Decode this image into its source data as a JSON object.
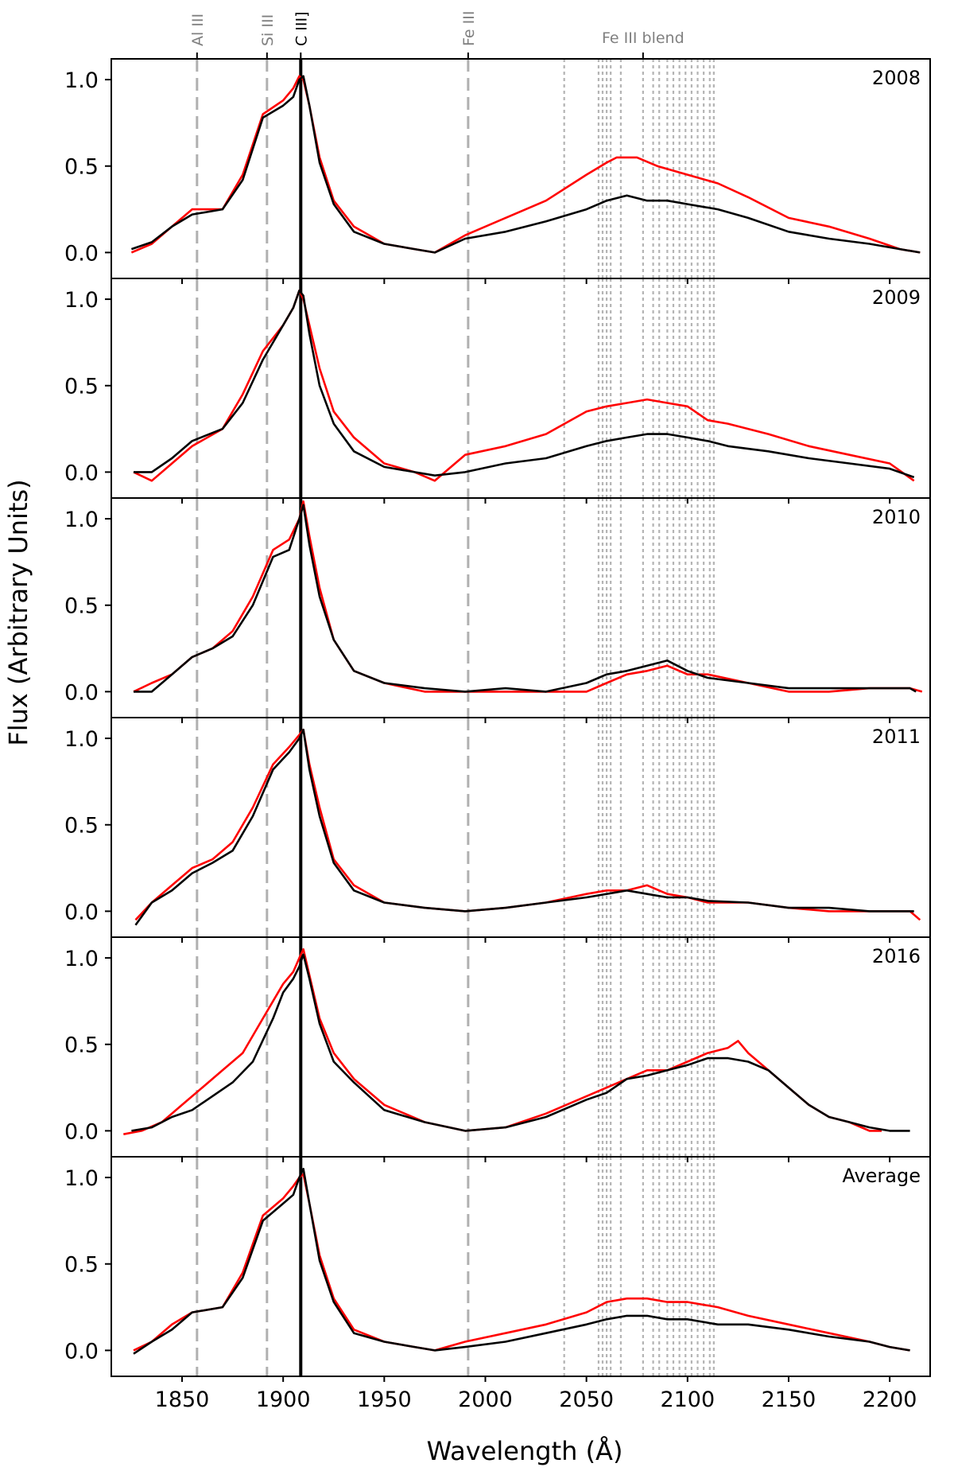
{
  "chart_data": {
    "type": "line",
    "xlabel": "Wavelength (Å)",
    "ylabel": "Flux (Arbitrary Units)",
    "xlim": [
      1815,
      2220
    ],
    "ylim": [
      -0.15,
      1.12
    ],
    "x_ticks": [
      1850,
      1900,
      1950,
      2000,
      2050,
      2100,
      2150,
      2200
    ],
    "y_ticks": [
      0.0,
      0.5,
      1.0
    ],
    "line_markers": [
      {
        "label": "Al III",
        "wavelength": 1857.4,
        "style": "dashed",
        "color": "#b0b0b0"
      },
      {
        "label": "Si III",
        "wavelength": 1892.0,
        "style": "dashed",
        "color": "#b0b0b0"
      },
      {
        "label": "C III]",
        "wavelength": 1908.7,
        "style": "solid",
        "color": "#000000"
      },
      {
        "label": "Fe III",
        "wavelength": 1991.5,
        "style": "dashed",
        "color": "#b0b0b0"
      }
    ],
    "blend_label": "Fe III blend",
    "blend_wavelength": 2078,
    "blend_lines": [
      2039,
      2056,
      2058,
      2060,
      2062,
      2067,
      2078,
      2083,
      2086,
      2090,
      2093,
      2096,
      2099,
      2102,
      2105,
      2108,
      2111,
      2113
    ],
    "series_colors": {
      "red": "#ff0000",
      "black": "#000000"
    },
    "panels": [
      {
        "label": "2008",
        "red": {
          "x": [
            1825,
            1835,
            1845,
            1855,
            1870,
            1880,
            1890,
            1900,
            1905,
            1908,
            1910,
            1913,
            1918,
            1925,
            1935,
            1950,
            1965,
            1975,
            1990,
            2010,
            2030,
            2050,
            2060,
            2065,
            2075,
            2085,
            2100,
            2115,
            2130,
            2150,
            2170,
            2190,
            2205,
            2215
          ],
          "y": [
            0.0,
            0.05,
            0.15,
            0.25,
            0.25,
            0.45,
            0.8,
            0.88,
            0.95,
            1.02,
            1.0,
            0.85,
            0.55,
            0.3,
            0.15,
            0.05,
            0.02,
            0.0,
            0.1,
            0.2,
            0.3,
            0.45,
            0.52,
            0.55,
            0.55,
            0.5,
            0.45,
            0.4,
            0.32,
            0.2,
            0.15,
            0.08,
            0.02,
            0.0
          ]
        },
        "black": {
          "x": [
            1825,
            1835,
            1845,
            1855,
            1870,
            1880,
            1890,
            1900,
            1905,
            1908,
            1910,
            1913,
            1918,
            1925,
            1935,
            1950,
            1965,
            1975,
            1990,
            2010,
            2030,
            2050,
            2060,
            2070,
            2080,
            2090,
            2100,
            2115,
            2130,
            2150,
            2170,
            2190,
            2205,
            2215
          ],
          "y": [
            0.02,
            0.06,
            0.15,
            0.22,
            0.25,
            0.42,
            0.78,
            0.85,
            0.9,
            1.0,
            1.02,
            0.85,
            0.52,
            0.28,
            0.12,
            0.05,
            0.02,
            0.0,
            0.08,
            0.12,
            0.18,
            0.25,
            0.3,
            0.33,
            0.3,
            0.3,
            0.28,
            0.25,
            0.2,
            0.12,
            0.08,
            0.05,
            0.02,
            0.0
          ]
        }
      },
      {
        "label": "2009",
        "red": {
          "x": [
            1826,
            1835,
            1845,
            1855,
            1870,
            1880,
            1890,
            1900,
            1905,
            1908,
            1910,
            1913,
            1918,
            1925,
            1935,
            1950,
            1965,
            1975,
            1990,
            2010,
            2030,
            2050,
            2060,
            2070,
            2080,
            2090,
            2100,
            2110,
            2120,
            2140,
            2160,
            2180,
            2200,
            2212
          ],
          "y": [
            0.0,
            -0.05,
            0.05,
            0.15,
            0.25,
            0.45,
            0.7,
            0.85,
            0.95,
            1.05,
            1.0,
            0.85,
            0.6,
            0.35,
            0.2,
            0.05,
            0.0,
            -0.05,
            0.1,
            0.15,
            0.22,
            0.35,
            0.38,
            0.4,
            0.42,
            0.4,
            0.38,
            0.3,
            0.28,
            0.22,
            0.15,
            0.1,
            0.05,
            -0.05
          ]
        },
        "black": {
          "x": [
            1826,
            1835,
            1845,
            1855,
            1870,
            1880,
            1890,
            1900,
            1905,
            1908,
            1910,
            1913,
            1918,
            1925,
            1935,
            1950,
            1965,
            1975,
            1990,
            2010,
            2030,
            2050,
            2060,
            2070,
            2080,
            2090,
            2100,
            2110,
            2120,
            2140,
            2160,
            2180,
            2200,
            2212
          ],
          "y": [
            0.0,
            0.0,
            0.08,
            0.18,
            0.25,
            0.4,
            0.65,
            0.85,
            0.95,
            1.05,
            1.02,
            0.8,
            0.5,
            0.28,
            0.12,
            0.03,
            0.0,
            -0.02,
            0.0,
            0.05,
            0.08,
            0.15,
            0.18,
            0.2,
            0.22,
            0.22,
            0.2,
            0.18,
            0.15,
            0.12,
            0.08,
            0.05,
            0.02,
            -0.03
          ]
        }
      },
      {
        "label": "2010",
        "red": {
          "x": [
            1826,
            1835,
            1845,
            1855,
            1865,
            1875,
            1885,
            1895,
            1903,
            1908,
            1910,
            1913,
            1918,
            1925,
            1935,
            1950,
            1970,
            1990,
            2010,
            2030,
            2050,
            2060,
            2070,
            2080,
            2090,
            2100,
            2110,
            2130,
            2150,
            2170,
            2190,
            2210,
            2216
          ],
          "y": [
            0.0,
            0.05,
            0.1,
            0.2,
            0.25,
            0.35,
            0.55,
            0.82,
            0.88,
            1.0,
            1.1,
            0.9,
            0.6,
            0.3,
            0.12,
            0.05,
            0.0,
            0.0,
            0.0,
            0.0,
            0.0,
            0.05,
            0.1,
            0.12,
            0.15,
            0.1,
            0.1,
            0.05,
            0.0,
            0.0,
            0.02,
            0.02,
            0.0
          ]
        },
        "black": {
          "x": [
            1826,
            1835,
            1845,
            1855,
            1865,
            1875,
            1885,
            1895,
            1903,
            1908,
            1910,
            1913,
            1918,
            1925,
            1935,
            1950,
            1970,
            1990,
            2010,
            2030,
            2050,
            2060,
            2070,
            2080,
            2090,
            2100,
            2110,
            2130,
            2150,
            2170,
            2190,
            2210,
            2213
          ],
          "y": [
            0.0,
            0.0,
            0.1,
            0.2,
            0.25,
            0.32,
            0.5,
            0.78,
            0.82,
            1.0,
            1.08,
            0.85,
            0.55,
            0.3,
            0.12,
            0.05,
            0.02,
            0.0,
            0.02,
            0.0,
            0.05,
            0.1,
            0.12,
            0.15,
            0.18,
            0.12,
            0.08,
            0.05,
            0.02,
            0.02,
            0.02,
            0.02,
            0.0
          ]
        }
      },
      {
        "label": "2011",
        "red": {
          "x": [
            1827,
            1835,
            1845,
            1855,
            1865,
            1875,
            1885,
            1895,
            1903,
            1908,
            1910,
            1913,
            1918,
            1925,
            1935,
            1950,
            1970,
            1990,
            2010,
            2030,
            2050,
            2060,
            2070,
            2080,
            2090,
            2100,
            2110,
            2130,
            2150,
            2170,
            2190,
            2210,
            2215
          ],
          "y": [
            -0.05,
            0.05,
            0.15,
            0.25,
            0.3,
            0.4,
            0.6,
            0.85,
            0.95,
            1.02,
            1.05,
            0.85,
            0.6,
            0.3,
            0.15,
            0.05,
            0.02,
            0.0,
            0.02,
            0.05,
            0.1,
            0.12,
            0.12,
            0.15,
            0.1,
            0.08,
            0.05,
            0.05,
            0.02,
            0.0,
            0.0,
            0.0,
            -0.05
          ]
        },
        "black": {
          "x": [
            1827,
            1835,
            1845,
            1855,
            1865,
            1875,
            1885,
            1895,
            1903,
            1908,
            1910,
            1913,
            1918,
            1925,
            1935,
            1950,
            1970,
            1990,
            2010,
            2030,
            2050,
            2060,
            2070,
            2080,
            2090,
            2100,
            2110,
            2130,
            2150,
            2170,
            2190,
            2210,
            2212
          ],
          "y": [
            -0.08,
            0.05,
            0.12,
            0.22,
            0.28,
            0.35,
            0.55,
            0.82,
            0.92,
            1.0,
            1.05,
            0.82,
            0.55,
            0.28,
            0.12,
            0.05,
            0.02,
            0.0,
            0.02,
            0.05,
            0.08,
            0.1,
            0.12,
            0.1,
            0.08,
            0.08,
            0.06,
            0.05,
            0.02,
            0.02,
            0.0,
            0.0,
            0.0
          ]
        }
      },
      {
        "label": "2016",
        "red": {
          "x": [
            1821,
            1830,
            1840,
            1850,
            1860,
            1870,
            1880,
            1890,
            1900,
            1905,
            1908,
            1910,
            1913,
            1918,
            1925,
            1935,
            1950,
            1970,
            1990,
            2010,
            2030,
            2050,
            2060,
            2070,
            2080,
            2090,
            2100,
            2110,
            2120,
            2125,
            2130,
            2140,
            2150,
            2160,
            2170,
            2180,
            2190,
            2196
          ],
          "y": [
            -0.02,
            0.0,
            0.05,
            0.15,
            0.25,
            0.35,
            0.45,
            0.65,
            0.85,
            0.92,
            1.0,
            1.05,
            0.9,
            0.65,
            0.45,
            0.3,
            0.15,
            0.05,
            0.0,
            0.02,
            0.1,
            0.2,
            0.25,
            0.3,
            0.35,
            0.35,
            0.4,
            0.45,
            0.48,
            0.52,
            0.45,
            0.35,
            0.25,
            0.15,
            0.08,
            0.05,
            0.0,
            0.0
          ]
        },
        "black": {
          "x": [
            1825,
            1835,
            1845,
            1855,
            1865,
            1875,
            1885,
            1895,
            1900,
            1905,
            1908,
            1910,
            1913,
            1918,
            1925,
            1935,
            1950,
            1970,
            1990,
            2010,
            2030,
            2050,
            2060,
            2070,
            2080,
            2090,
            2100,
            2110,
            2120,
            2130,
            2140,
            2150,
            2160,
            2170,
            2180,
            2190,
            2200,
            2210
          ],
          "y": [
            0.0,
            0.02,
            0.08,
            0.12,
            0.2,
            0.28,
            0.4,
            0.65,
            0.8,
            0.88,
            0.95,
            1.02,
            0.88,
            0.62,
            0.4,
            0.28,
            0.12,
            0.05,
            0.0,
            0.02,
            0.08,
            0.18,
            0.22,
            0.3,
            0.32,
            0.35,
            0.38,
            0.42,
            0.42,
            0.4,
            0.35,
            0.25,
            0.15,
            0.08,
            0.05,
            0.02,
            0.0,
            0.0
          ]
        }
      },
      {
        "label": "Average",
        "red": {
          "x": [
            1826,
            1835,
            1845,
            1855,
            1870,
            1880,
            1890,
            1900,
            1905,
            1908,
            1910,
            1913,
            1918,
            1925,
            1935,
            1950,
            1965,
            1975,
            1990,
            2010,
            2030,
            2050,
            2060,
            2070,
            2080,
            2090,
            2100,
            2115,
            2130,
            2150,
            2170,
            2190,
            2200,
            2210
          ],
          "y": [
            0.0,
            0.05,
            0.15,
            0.22,
            0.25,
            0.45,
            0.78,
            0.88,
            0.95,
            1.0,
            1.02,
            0.85,
            0.55,
            0.3,
            0.12,
            0.05,
            0.02,
            0.0,
            0.05,
            0.1,
            0.15,
            0.22,
            0.28,
            0.3,
            0.3,
            0.28,
            0.28,
            0.25,
            0.2,
            0.15,
            0.1,
            0.05,
            0.02,
            0.0
          ]
        },
        "black": {
          "x": [
            1826,
            1835,
            1845,
            1855,
            1870,
            1880,
            1890,
            1900,
            1905,
            1908,
            1910,
            1913,
            1918,
            1925,
            1935,
            1950,
            1965,
            1975,
            1990,
            2010,
            2030,
            2050,
            2060,
            2070,
            2080,
            2090,
            2100,
            2115,
            2130,
            2150,
            2170,
            2190,
            2200,
            2210
          ],
          "y": [
            -0.02,
            0.05,
            0.12,
            0.22,
            0.25,
            0.42,
            0.75,
            0.85,
            0.9,
            1.0,
            1.05,
            0.85,
            0.52,
            0.28,
            0.1,
            0.05,
            0.02,
            0.0,
            0.02,
            0.05,
            0.1,
            0.15,
            0.18,
            0.2,
            0.2,
            0.18,
            0.18,
            0.15,
            0.15,
            0.12,
            0.08,
            0.05,
            0.02,
            0.0
          ]
        }
      }
    ]
  }
}
